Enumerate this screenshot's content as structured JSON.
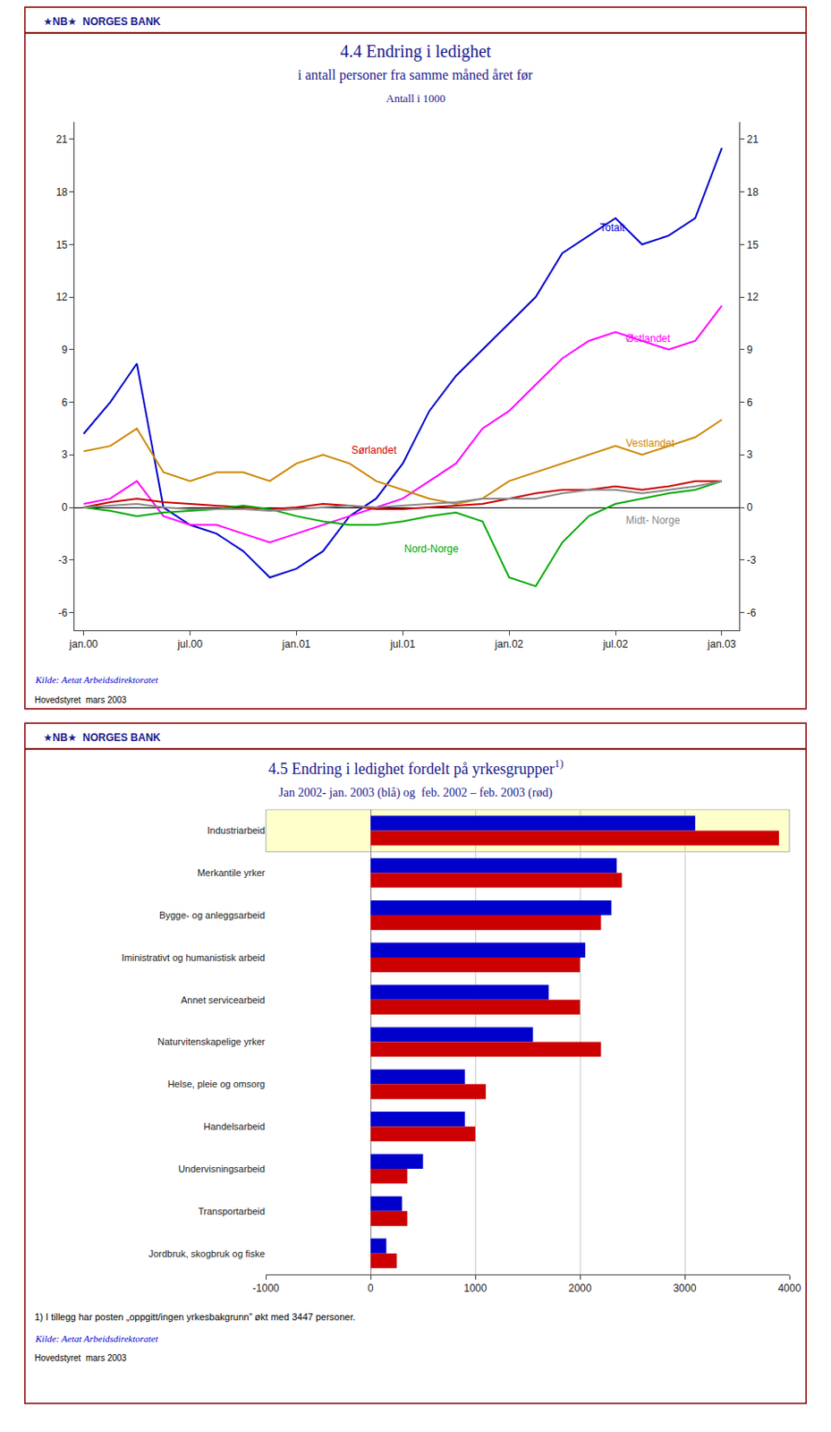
{
  "chart_data": [
    {
      "type": "line",
      "header": "★NB★  NORGES BANK",
      "title": "4.4 Endring i ledighet",
      "subtitle": [
        "i antall personer fra samme måned året før",
        "Antall i 1000"
      ],
      "x": [
        0,
        1.5,
        3,
        4.5,
        6,
        7.5,
        9,
        10.5,
        12,
        13.5,
        15,
        16.5,
        18,
        19.5,
        21,
        22.5,
        24,
        25.5,
        27,
        28.5,
        30,
        31.5,
        33,
        34.5,
        36
      ],
      "xlim": [
        -0.5,
        37
      ],
      "xticks": [
        {
          "value": 0,
          "label": "jan.00"
        },
        {
          "value": 6,
          "label": "jul.00"
        },
        {
          "value": 12,
          "label": "jan.01"
        },
        {
          "value": 18,
          "label": "jul.01"
        },
        {
          "value": 24,
          "label": "jan.02"
        },
        {
          "value": 30,
          "label": "jul.02"
        },
        {
          "value": 36,
          "label": "jan.03"
        }
      ],
      "ylim": [
        -7,
        22
      ],
      "yticks": [
        -6,
        -3,
        0,
        3,
        6,
        9,
        12,
        15,
        18,
        21
      ],
      "y2lim": [
        -7,
        22
      ],
      "y2ticks": [
        -6,
        -3,
        0,
        3,
        6,
        9,
        12,
        15,
        18,
        21
      ],
      "grid": false,
      "series": [
        {
          "name": "Totalt",
          "color": "#0000CC",
          "values": [
            4.2,
            6.0,
            8.2,
            0.0,
            -1.0,
            -1.5,
            -2.5,
            -4.0,
            -3.5,
            -2.5,
            -0.5,
            0.5,
            2.5,
            5.5,
            7.5,
            9.0,
            10.5,
            12.0,
            14.5,
            15.5,
            16.5,
            15.0,
            15.5,
            16.5,
            20.5
          ]
        },
        {
          "name": "Østlandet",
          "color": "#FF00FF",
          "values": [
            0.2,
            0.5,
            1.5,
            -0.5,
            -1.0,
            -1.0,
            -1.5,
            -2.0,
            -1.5,
            -1.0,
            -0.5,
            0.0,
            0.5,
            1.5,
            2.5,
            4.5,
            5.5,
            7.0,
            8.5,
            9.5,
            10.0,
            9.5,
            9.0,
            9.5,
            11.5
          ]
        },
        {
          "name": "Vestlandet",
          "color": "#CC8800",
          "values": [
            3.2,
            3.5,
            4.5,
            2.0,
            1.5,
            2.0,
            2.0,
            1.5,
            2.5,
            3.0,
            2.5,
            1.5,
            1.0,
            0.5,
            0.2,
            0.5,
            1.5,
            2.0,
            2.5,
            3.0,
            3.5,
            3.0,
            3.5,
            4.0,
            5.0
          ]
        },
        {
          "name": "Sørlandet",
          "color": "#CC0000",
          "values": [
            0.0,
            0.3,
            0.5,
            0.3,
            0.2,
            0.1,
            0.0,
            -0.1,
            0.0,
            0.2,
            0.1,
            -0.1,
            -0.1,
            0.0,
            0.1,
            0.2,
            0.5,
            0.8,
            1.0,
            1.0,
            1.2,
            1.0,
            1.2,
            1.5,
            1.5
          ]
        },
        {
          "name": "Nord-Norge",
          "color": "#00AA00",
          "values": [
            0.0,
            -0.2,
            -0.5,
            -0.3,
            -0.2,
            -0.1,
            0.1,
            -0.1,
            -0.5,
            -0.8,
            -1.0,
            -1.0,
            -0.8,
            -0.5,
            -0.3,
            -0.8,
            -4.0,
            -4.5,
            -2.0,
            -0.5,
            0.2,
            0.5,
            0.8,
            1.0,
            1.5
          ]
        },
        {
          "name": "Midt- Norge",
          "color": "#888888",
          "values": [
            0.0,
            0.1,
            0.2,
            0.0,
            -0.1,
            -0.1,
            -0.1,
            -0.2,
            -0.1,
            0.0,
            0.1,
            0.0,
            0.1,
            0.2,
            0.3,
            0.5,
            0.5,
            0.5,
            0.8,
            1.0,
            1.0,
            0.8,
            1.0,
            1.2,
            1.5
          ]
        }
      ],
      "annotations": [
        {
          "text": "Sørlandet",
          "x": 15,
          "y": 2.8
        },
        {
          "text": "Nord-Norge",
          "x": 18,
          "y": -2.8
        },
        {
          "text": "Midt- Norge",
          "x": 30.5,
          "y": -1.2
        },
        {
          "text": "Totalt",
          "x": 29,
          "y": 15.5
        },
        {
          "text": "Østlandet",
          "x": 30.5,
          "y": 9.2
        },
        {
          "text": "Vestlandet",
          "x": 30.5,
          "y": 3.2
        }
      ],
      "source": "Kilde: Aetat Arbeidsdirektoratet",
      "footer": "Hovedstyret  mars 2003"
    },
    {
      "type": "bar",
      "orientation": "horizontal",
      "header": "★NB★  NORGES BANK",
      "title": "4.5 Endring i ledighet fordelt på yrkesgrupper",
      "title_note": "1)",
      "subtitle": [
        "Jan 2002- jan. 2003 (blå) og  feb. 2002 – feb. 2003 (rød)"
      ],
      "categories": [
        "Industriarbeid",
        "Merkantile yrker",
        "Bygge- og anleggsarbeid",
        "Iministrativt og humanistisk arbeid",
        "Annet servicearbeid",
        "Naturvitenskapelige yrker",
        "Helse, pleie og omsorg",
        "Handelsarbeid",
        "Undervisningsarbeid",
        "Transportarbeid",
        "Jordbruk, skogbruk og fiske"
      ],
      "series": [
        {
          "color": "#0000CC",
          "values": [
            3100,
            2350,
            2300,
            2050,
            1700,
            1550,
            900,
            900,
            500,
            300,
            150
          ]
        },
        {
          "color": "#CC0000",
          "values": [
            3900,
            2400,
            2200,
            2000,
            2000,
            2200,
            1100,
            1000,
            350,
            350,
            250
          ]
        }
      ],
      "xlim": [
        -1000,
        4000
      ],
      "xticks": [
        -1000,
        0,
        1000,
        2000,
        3000,
        4000
      ],
      "grid": true,
      "footnote": "1) I tillegg har posten „oppgitt/ingen yrkesbakgrunn” økt med 3447 personer.",
      "source": "Kilde: Aetat Arbeidsdirektoratet",
      "footer": "Hovedstyret  mars 2003"
    }
  ]
}
